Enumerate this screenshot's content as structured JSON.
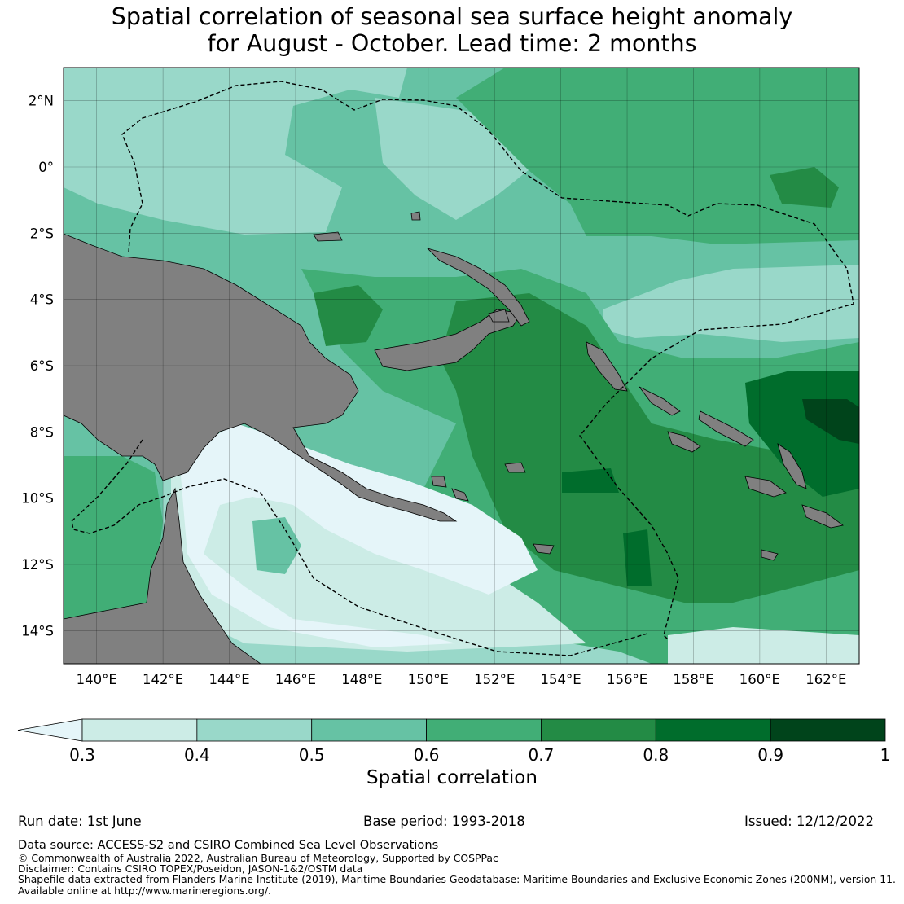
{
  "title": {
    "line1": "Spatial correlation of seasonal sea surface height anomaly",
    "line2": "for August - October. Lead time: 2 months"
  },
  "map": {
    "lon_range": [
      139,
      163
    ],
    "lat_range": [
      -15,
      3
    ],
    "lon_ticks": [
      "140°E",
      "142°E",
      "144°E",
      "146°E",
      "148°E",
      "150°E",
      "152°E",
      "154°E",
      "156°E",
      "158°E",
      "160°E",
      "162°E"
    ],
    "lat_ticks": [
      "2°N",
      "0°",
      "2°S",
      "4°S",
      "6°S",
      "8°S",
      "10°S",
      "12°S",
      "14°S"
    ],
    "land_color": "#808080",
    "boundary_style": "dashed black",
    "grid": true
  },
  "legend": {
    "label": "Spatial correlation",
    "ticks": [
      "0.3",
      "0.4",
      "0.5",
      "0.6",
      "0.7",
      "0.8",
      "0.9",
      "1"
    ],
    "colors": [
      "#e5f5f9",
      "#ccece6",
      "#99d8c9",
      "#66c2a4",
      "#41ae76",
      "#238b45",
      "#006d2c",
      "#00441b"
    ],
    "extend": "min"
  },
  "footer": {
    "run_date": "Run date: 1st June",
    "base_period": "Base period: 1993-2018",
    "issued": "Issued: 12/12/2022",
    "data_source": "Data source: ACCESS-S2 and CSIRO Combined Sea Level Observations",
    "copyright": "© Commonwealth of Australia 2022, Australian Bureau of Meteorology, Supported by COSPPac",
    "disclaimer": "Disclaimer: Contains CSIRO TOPEX/Poseidon, JASON-1&2/OSTM data",
    "shapefile": "Shapefile data extracted from Flanders Marine Institute (2019), Maritime Boundaries Geodatabase: Maritime Boundaries and Exclusive Economic Zones (200NM), version 11.",
    "available": "Available online at http://www.marineregions.org/."
  }
}
